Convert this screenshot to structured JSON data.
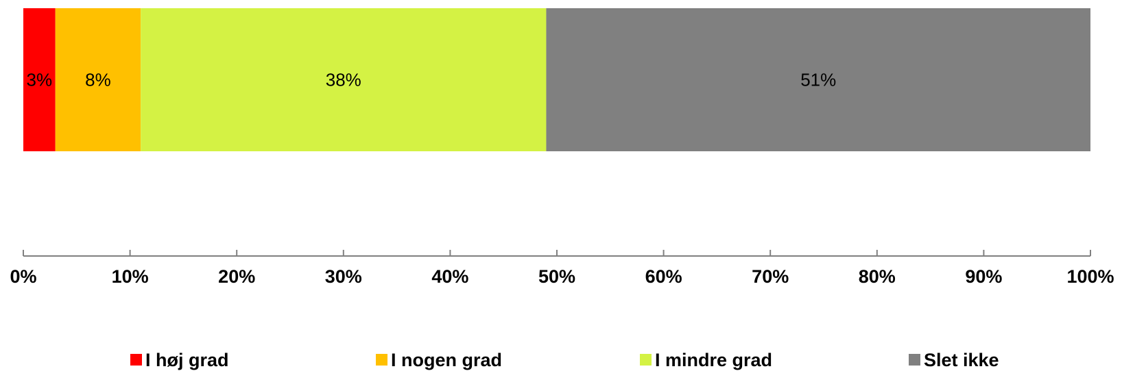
{
  "chart_data": {
    "type": "bar",
    "orientation": "horizontal",
    "stacked": true,
    "percent_stacked": true,
    "categories": [
      ""
    ],
    "series": [
      {
        "name": "I høj grad",
        "values": [
          3
        ],
        "label": "3%",
        "color": "#ff0000"
      },
      {
        "name": "I nogen grad",
        "values": [
          8
        ],
        "label": "8%",
        "color": "#ffc000"
      },
      {
        "name": "I mindre grad",
        "values": [
          38
        ],
        "label": "38%",
        "color": "#d4f244"
      },
      {
        "name": "Slet ikke",
        "values": [
          51
        ],
        "label": "51%",
        "color": "#808080"
      }
    ],
    "xaxis": {
      "range": [
        0,
        100
      ],
      "ticks": [
        0,
        10,
        20,
        30,
        40,
        50,
        60,
        70,
        80,
        90,
        100
      ],
      "tick_labels": [
        "0%",
        "10%",
        "20%",
        "30%",
        "40%",
        "50%",
        "60%",
        "70%",
        "80%",
        "90%",
        "100%"
      ],
      "axis_color": "#808080"
    },
    "grid": false,
    "legend": "bottom"
  }
}
